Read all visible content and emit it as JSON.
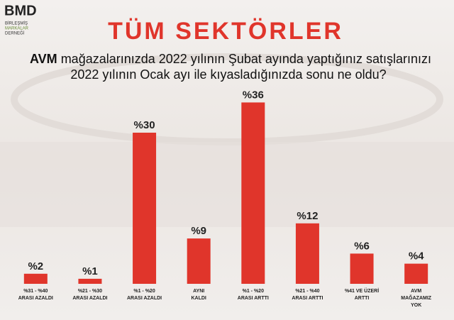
{
  "logo": {
    "name": "BMD",
    "lines": [
      "BİRLEŞMİŞ",
      "MARKALAR",
      "DERNEĞİ"
    ]
  },
  "chart_data": {
    "type": "bar",
    "title": "TÜM SEKTÖRLER",
    "subtitle_bold": "AVM",
    "subtitle": [
      "mağazalarınızda 2022 yılının Şubat ayında yaptığınız satışlarınızı",
      "2022 yılının Ocak ayı ile kıyasladığınızda sonu ne oldu?"
    ],
    "categories": [
      [
        "%31 - %40",
        "ARASI AZALDI"
      ],
      [
        "%21 - %30",
        "ARASI AZALDI"
      ],
      [
        "%1 - %20",
        "ARASI AZALDI"
      ],
      [
        "AYNI",
        "KALDI"
      ],
      [
        "%1 - %20",
        "ARASI ARTTI"
      ],
      [
        "%21 - %40",
        "ARASI ARTTI"
      ],
      [
        "%41 VE ÜZERİ",
        "ARTTI"
      ],
      [
        "AVM",
        "MAĞAZAMIZ",
        "YOK"
      ]
    ],
    "values": [
      2,
      1,
      30,
      9,
      36,
      12,
      6,
      4
    ],
    "value_labels": [
      "%2",
      "%1",
      "%30",
      "%9",
      "%36",
      "%12",
      "%6",
      "%4"
    ],
    "color": "#e0352b"
  }
}
